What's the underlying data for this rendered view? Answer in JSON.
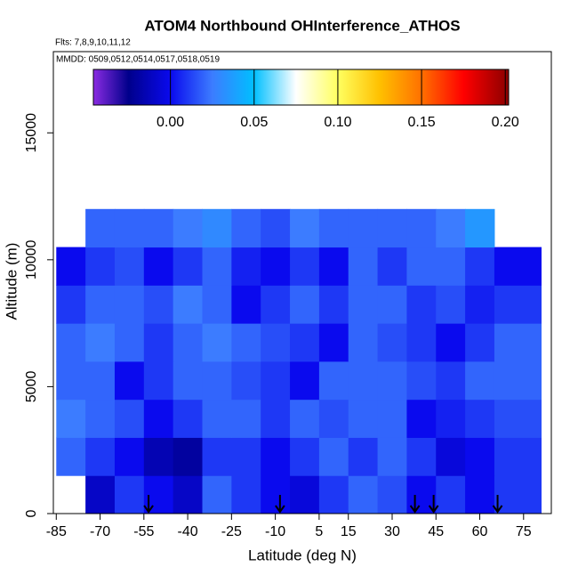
{
  "chart_data": {
    "type": "heatmap",
    "title": "ATOM4 Northbound OHInterference_ATHOS",
    "subtitle": "Flts: 7,8,9,10,11,12",
    "annotation": "MMDD: 0509,0512,0514,0517,0518,0519",
    "x_label": "Latitude (deg N)",
    "y_label": "Altitude (m)",
    "xlim": [
      -86,
      84.5
    ],
    "ylim": [
      0,
      18200
    ],
    "xticks": [
      -85,
      -70,
      -55,
      -40,
      -25,
      -10,
      5,
      15,
      30,
      45,
      60,
      75
    ],
    "yticks": [
      0,
      5000,
      10000,
      15000
    ],
    "x_edges": [
      -85,
      -75,
      -65,
      -55,
      -45,
      -35,
      -25,
      -15,
      -5,
      5,
      15,
      25,
      35,
      45,
      55,
      65,
      81
    ],
    "y_edges": [
      0,
      1500,
      3000,
      4500,
      6000,
      7500,
      9000,
      10500,
      12000
    ],
    "z": [
      [
        null,
        -0.01,
        0.01,
        0.0,
        -0.01,
        0.02,
        0.01,
        0.0,
        -0.005,
        0.01,
        0.02,
        0.015,
        0.0,
        0.01,
        0.0,
        0.01
      ],
      [
        0.02,
        0.01,
        0.0,
        -0.015,
        -0.02,
        0.01,
        0.01,
        0.0,
        0.01,
        0.02,
        0.01,
        0.02,
        0.01,
        -0.005,
        0.0,
        0.01
      ],
      [
        0.025,
        0.02,
        0.015,
        0.0,
        0.01,
        0.02,
        0.02,
        0.01,
        0.02,
        0.015,
        0.02,
        0.02,
        0.0,
        0.005,
        0.01,
        0.015
      ],
      [
        0.02,
        0.02,
        0.0,
        0.01,
        0.02,
        0.02,
        0.015,
        0.01,
        0.0,
        0.02,
        0.02,
        0.02,
        0.015,
        0.01,
        0.02,
        0.02
      ],
      [
        0.02,
        0.025,
        0.02,
        0.01,
        0.02,
        0.025,
        0.02,
        0.015,
        0.01,
        0.0,
        0.02,
        0.015,
        0.01,
        0.0,
        0.01,
        0.02
      ],
      [
        0.01,
        0.02,
        0.02,
        0.015,
        0.025,
        0.02,
        0.0,
        0.01,
        0.02,
        0.01,
        0.02,
        0.02,
        0.01,
        0.015,
        0.005,
        0.01
      ],
      [
        0.0,
        0.01,
        0.015,
        0.0,
        0.01,
        0.02,
        0.005,
        0.0,
        0.01,
        0.0,
        0.02,
        0.01,
        0.02,
        0.02,
        0.01,
        0.0
      ],
      [
        null,
        0.02,
        0.02,
        0.02,
        0.025,
        0.03,
        0.02,
        0.015,
        0.025,
        0.02,
        0.02,
        0.02,
        0.02,
        0.025,
        0.035,
        null
      ]
    ],
    "arrows": [
      -53.4,
      -8.4,
      37.8,
      44.2,
      66.1
    ],
    "colorbar": {
      "lim": [
        -0.046,
        0.202
      ],
      "ticks": [
        {
          "value": 0,
          "label": "0.00"
        },
        {
          "value": 0.05,
          "label": "0.05"
        },
        {
          "value": 0.1,
          "label": "0.10"
        },
        {
          "value": 0.15,
          "label": "0.15"
        },
        {
          "value": 0.2,
          "label": "0.20"
        }
      ],
      "stops": [
        {
          "value": -0.046,
          "color": "#8a2be2"
        },
        {
          "value": -0.025,
          "color": "#00008b"
        },
        {
          "value": 0.0,
          "color": "#0a0aee"
        },
        {
          "value": 0.025,
          "color": "#3c7cff"
        },
        {
          "value": 0.05,
          "color": "#00bfff"
        },
        {
          "value": 0.075,
          "color": "#ffffff"
        },
        {
          "value": 0.1,
          "color": "#ffff60"
        },
        {
          "value": 0.125,
          "color": "#ffc000"
        },
        {
          "value": 0.15,
          "color": "#ff7000"
        },
        {
          "value": 0.175,
          "color": "#ff0000"
        },
        {
          "value": 0.202,
          "color": "#8b0000"
        }
      ]
    }
  }
}
